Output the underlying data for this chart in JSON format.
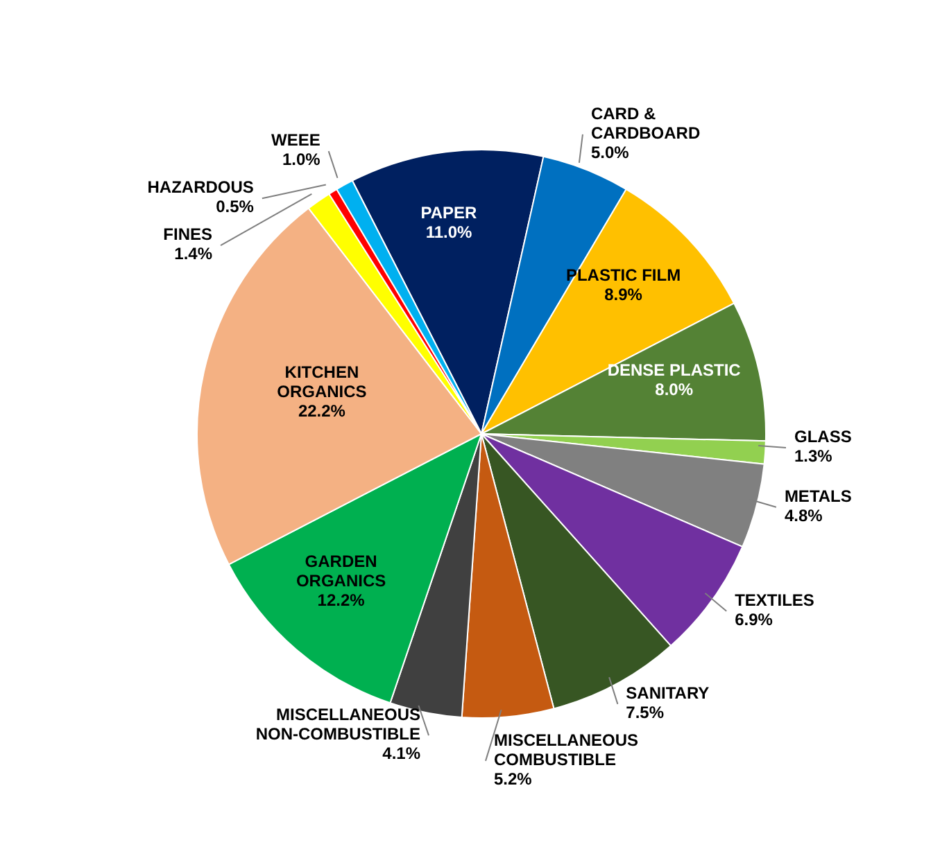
{
  "chart_data": {
    "type": "pie",
    "categories": [
      "PAPER",
      "CARD & CARDBOARD",
      "PLASTIC FILM",
      "DENSE PLASTIC",
      "GLASS",
      "METALS",
      "TEXTILES",
      "SANITARY",
      "MISCELLANEOUS COMBUSTIBLE",
      "MISCELLANEOUS NON-COMBUSTIBLE",
      "GARDEN ORGANICS",
      "KITCHEN ORGANICS",
      "FINES",
      "HAZARDOUS",
      "WEEE"
    ],
    "values": [
      11.0,
      5.0,
      8.9,
      8.0,
      1.3,
      4.8,
      6.9,
      7.5,
      5.2,
      4.1,
      12.2,
      22.2,
      1.4,
      0.5,
      1.0
    ],
    "value_labels": [
      "11.0%",
      "5.0%",
      "8.9%",
      "8.0%",
      "1.3%",
      "4.8%",
      "6.9%",
      "7.5%",
      "5.2%",
      "4.1%",
      "12.2%",
      "22.2%",
      "1.4%",
      "0.5%",
      "1.0%"
    ],
    "colors": [
      "#002060",
      "#0070c0",
      "#ffc000",
      "#548235",
      "#92d050",
      "#808080",
      "#7030a0",
      "#375623",
      "#c55a11",
      "#404040",
      "#00b050",
      "#f4b183",
      "#ffff00",
      "#ff0000",
      "#00b0f0"
    ]
  }
}
